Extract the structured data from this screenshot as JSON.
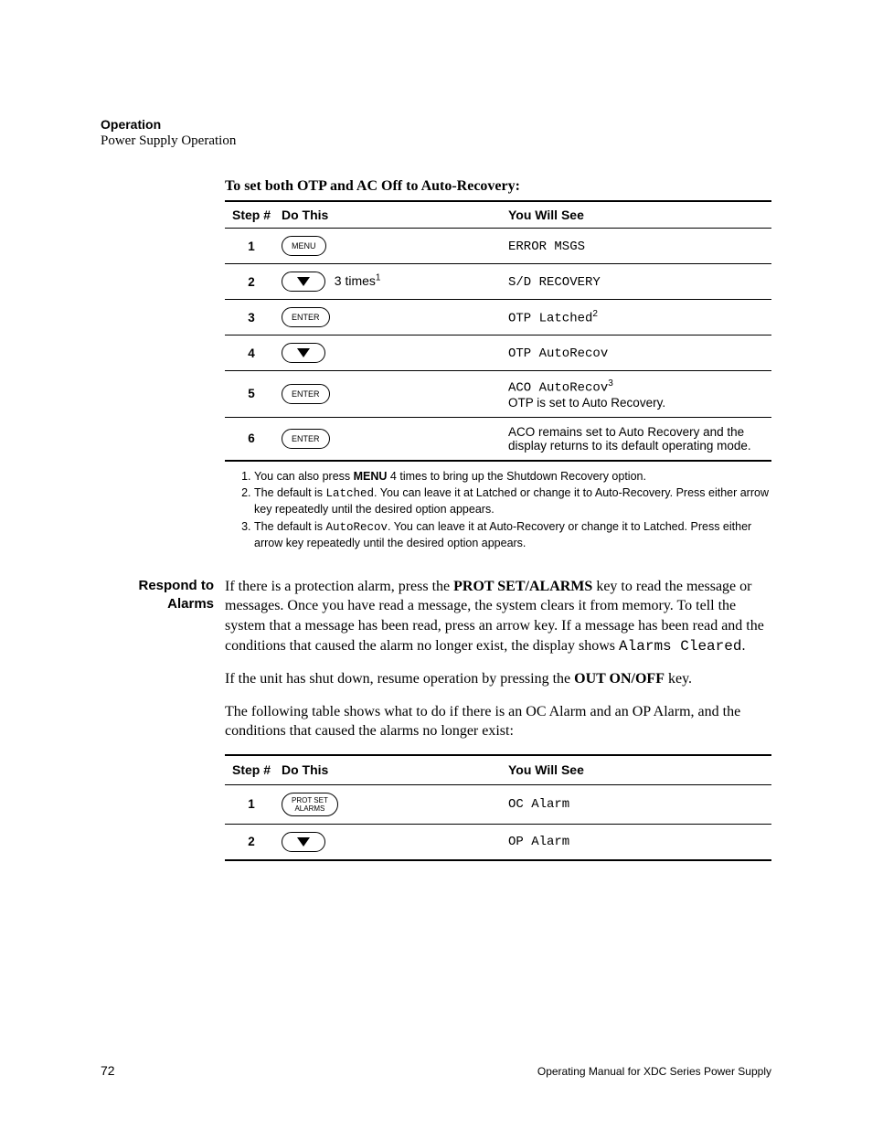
{
  "header": {
    "section": "Operation",
    "subsection": "Power Supply Operation"
  },
  "procedure1": {
    "title": "To set both OTP and AC Off to Auto-Recovery:",
    "columns": {
      "step": "Step #",
      "do": "Do This",
      "see": "You Will See"
    },
    "rows": [
      {
        "num": "1",
        "btn": "MENU",
        "see_mono": "ERROR MSGS"
      },
      {
        "num": "2",
        "btn": "ARROW",
        "after": "3 times",
        "after_sup": "1",
        "see_mono": "S/D RECOVERY"
      },
      {
        "num": "3",
        "btn": "ENTER",
        "see_mono": "OTP Latched",
        "see_sup": "2"
      },
      {
        "num": "4",
        "btn": "ARROW",
        "see_mono": "OTP AutoRecov"
      },
      {
        "num": "5",
        "btn": "ENTER",
        "see_mono": "ACO AutoRecov",
        "see_sup": "3",
        "see_text": "OTP is set to Auto Recovery."
      },
      {
        "num": "6",
        "btn": "ENTER",
        "see_text_only": "ACO remains set to Auto Recovery and the display returns to its default operating mode."
      }
    ],
    "footnotes": [
      {
        "pre": "You can also press ",
        "bold": "MENU",
        "post": " 4 times to bring up the Shutdown Recovery option."
      },
      {
        "pre": "The default is ",
        "mono": "Latched",
        "post": ". You can leave it at Latched or change it to Auto-Recovery. Press either arrow key repeatedly until the desired option appears."
      },
      {
        "pre": "The default is ",
        "mono": "AutoRecov",
        "post": ". You can leave it at Auto-Recovery or change it to Latched. Press either arrow key repeatedly until the desired option appears."
      }
    ]
  },
  "respond": {
    "label_l1": "Respond to",
    "label_l2": "Alarms",
    "p1_a": "If there is a protection alarm, press the ",
    "p1_bold": "PROT SET/ALARMS",
    "p1_b": " key to read the message or messages. Once you have read a message, the system clears it from memory. To tell the system that a message has been read, press an arrow key. If a message has been read and the conditions that caused the alarm no longer exist, the display shows ",
    "p1_mono": "Alarms Cleared",
    "p1_c": ".",
    "p2_a": "If the unit has shut down, resume operation by pressing the ",
    "p2_bold": "OUT ON/OFF",
    "p2_b": " key.",
    "p3": "The following table shows what to do if there is an OC Alarm and an OP Alarm, and the conditions that caused the alarms no longer exist:"
  },
  "procedure2": {
    "columns": {
      "step": "Step #",
      "do": "Do This",
      "see": "You Will See"
    },
    "rows": [
      {
        "num": "1",
        "btn_l1": "PROT SET",
        "btn_l2": "ALARMS",
        "see_mono": "OC Alarm"
      },
      {
        "num": "2",
        "btn": "ARROW",
        "see_mono": "OP Alarm"
      }
    ]
  },
  "footer": {
    "page": "72",
    "title": "Operating Manual for XDC Series Power Supply"
  }
}
